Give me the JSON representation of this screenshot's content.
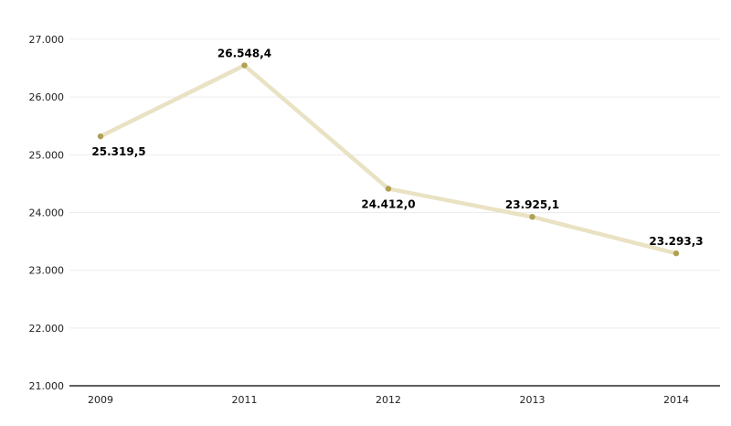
{
  "chart_data": {
    "type": "line",
    "title": "",
    "xlabel": "",
    "ylabel": "",
    "categories": [
      "2009",
      "2011",
      "2012",
      "2013",
      "2014"
    ],
    "series": [
      {
        "name": "series-1",
        "values": [
          25319.5,
          26548.4,
          24412.0,
          23925.1,
          23293.3
        ],
        "point_labels": [
          "25.319,5",
          "26.548,4",
          "24.412,0",
          "23.925,1",
          "23.293,3"
        ],
        "label_positions": [
          "below",
          "above",
          "below",
          "above",
          "above"
        ]
      }
    ],
    "ylim": [
      21000,
      27000
    ],
    "ytick_interval": 1000,
    "ytick_labels": [
      "27.000",
      "26.000",
      "25.000",
      "24.000",
      "23.000",
      "22.000",
      "21.000"
    ],
    "grid": "horizontal",
    "legend_position": "none",
    "colors": {
      "line": "#e9e2c3",
      "marker": "#afa054",
      "gridline": "#ececec",
      "axis_line": "#2b2b2b",
      "tick_label": "#222222",
      "data_label": "#000000",
      "background": "#ffffff"
    }
  }
}
